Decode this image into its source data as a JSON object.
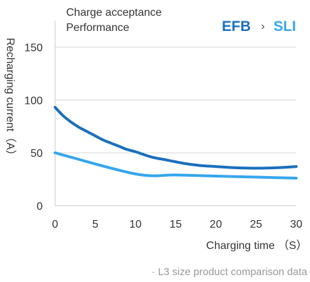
{
  "chart_data": {
    "type": "line",
    "title_lines": [
      "Charge acceptance",
      "Performance"
    ],
    "xlabel": "Charging time （S）",
    "ylabel": "Recharging current（A）",
    "xlim": [
      0,
      30
    ],
    "ylim": [
      0,
      175
    ],
    "xticks": [
      "0",
      "5",
      "10",
      "15",
      "20",
      "25",
      "30"
    ],
    "yticks": [
      "0",
      "50",
      "100",
      "150"
    ],
    "grid": "horizontal",
    "legend": {
      "items": [
        {
          "label": "EFB",
          "color": "#1a6fbd"
        },
        {
          "label": "SLI",
          "color": "#35a6ee"
        }
      ],
      "separator": "›",
      "placement": "top-right"
    },
    "series": [
      {
        "name": "EFB",
        "color": "#1a6fbd",
        "x": [
          0,
          1,
          2,
          3,
          4,
          5,
          6,
          7,
          8,
          9,
          10,
          12,
          14,
          16,
          18,
          20,
          22,
          24,
          26,
          28,
          30
        ],
        "y": [
          93,
          85,
          79,
          74,
          70,
          66,
          62,
          59,
          56,
          53,
          51,
          46,
          43,
          40,
          38,
          37,
          36,
          35.5,
          35.5,
          36,
          37
        ]
      },
      {
        "name": "SLI",
        "color": "#35a6ee",
        "x": [
          0,
          10,
          15,
          20,
          25,
          30
        ],
        "y": [
          50,
          30,
          29,
          28,
          27,
          26
        ]
      }
    ]
  },
  "footnote": "· L3 size product comparison data"
}
